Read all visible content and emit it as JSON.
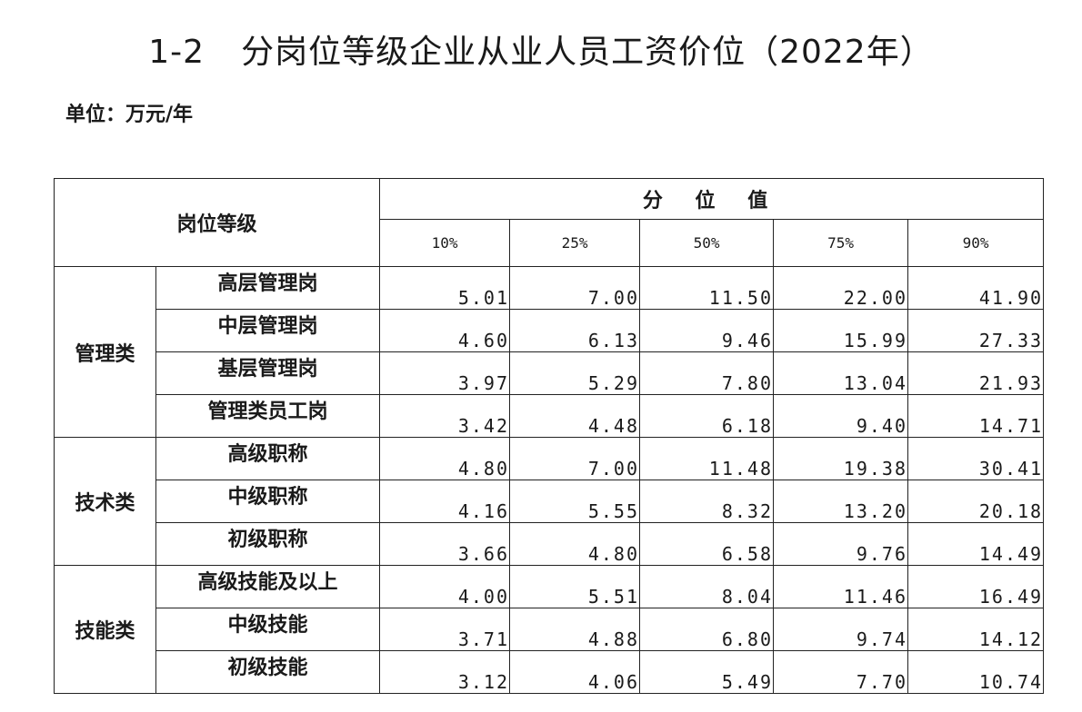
{
  "title": {
    "number": "1-2",
    "text": "分岗位等级企业从业人员工资价位（2022年）"
  },
  "unit": "单位：万元/年",
  "table": {
    "header_grade": "岗位等级",
    "header_percentile": "分 位 值",
    "percentiles": [
      "10%",
      "25%",
      "50%",
      "75%",
      "90%"
    ],
    "groups": [
      {
        "category": "管理类",
        "rows": [
          {
            "position": "高层管理岗",
            "values": [
              "5.01",
              "7.00",
              "11.50",
              "22.00",
              "41.90"
            ]
          },
          {
            "position": "中层管理岗",
            "values": [
              "4.60",
              "6.13",
              "9.46",
              "15.99",
              "27.33"
            ]
          },
          {
            "position": "基层管理岗",
            "values": [
              "3.97",
              "5.29",
              "7.80",
              "13.04",
              "21.93"
            ]
          },
          {
            "position": "管理类员工岗",
            "values": [
              "3.42",
              "4.48",
              "6.18",
              "9.40",
              "14.71"
            ]
          }
        ]
      },
      {
        "category": "技术类",
        "rows": [
          {
            "position": "高级职称",
            "values": [
              "4.80",
              "7.00",
              "11.48",
              "19.38",
              "30.41"
            ]
          },
          {
            "position": "中级职称",
            "values": [
              "4.16",
              "5.55",
              "8.32",
              "13.20",
              "20.18"
            ]
          },
          {
            "position": "初级职称",
            "values": [
              "3.66",
              "4.80",
              "6.58",
              "9.76",
              "14.49"
            ]
          }
        ]
      },
      {
        "category": "技能类",
        "rows": [
          {
            "position": "高级技能及以上",
            "values": [
              "4.00",
              "5.51",
              "8.04",
              "11.46",
              "16.49"
            ]
          },
          {
            "position": "中级技能",
            "values": [
              "3.71",
              "4.88",
              "6.80",
              "9.74",
              "14.12"
            ]
          },
          {
            "position": "初级技能",
            "values": [
              "3.12",
              "4.06",
              "5.49",
              "7.70",
              "10.74"
            ]
          }
        ]
      }
    ]
  }
}
